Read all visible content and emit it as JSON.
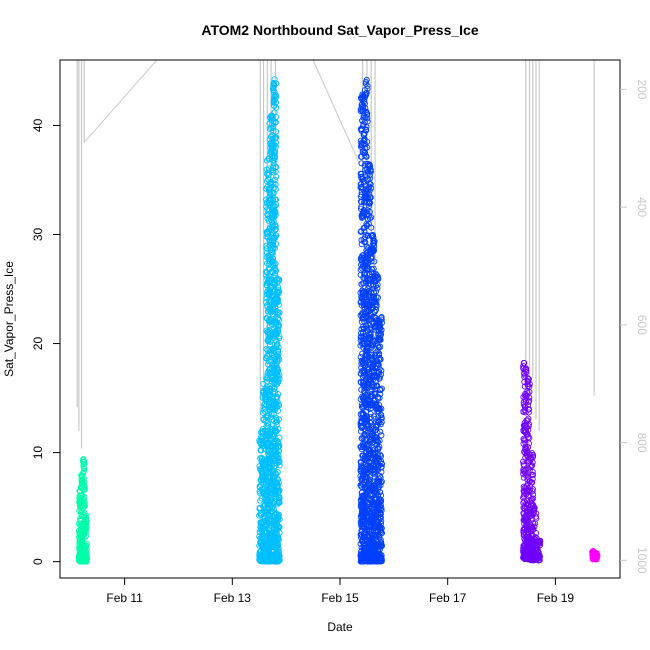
{
  "chart_data": {
    "type": "scatter",
    "title": "ATOM2 Northbound Sat_Vapor_Press_Ice",
    "xlabel": "Date",
    "ylabel": "Sat_Vapor_Press_Ice",
    "x_ticks": [
      "Feb 11",
      "Feb 13",
      "Feb 15",
      "Feb 17",
      "Feb 19"
    ],
    "x_tick_values": [
      11,
      13,
      15,
      17,
      19
    ],
    "xlim": [
      9.8,
      20.2
    ],
    "ylim": [
      -1.5,
      46
    ],
    "y_ticks": [
      0,
      10,
      20,
      30,
      40
    ],
    "right_axis": {
      "reversed": true,
      "ticks": [
        200,
        400,
        600,
        800,
        1000
      ],
      "ylim_top": 150,
      "ylim_bottom": 1030,
      "color": "#c8c8c8"
    },
    "series": [
      {
        "color": "#00ffaa",
        "x_start": 10.15,
        "x_end": 10.3,
        "segments": [
          [
            0.0,
            6.5
          ],
          [
            0.0,
            8.0
          ],
          [
            0.0,
            9.4
          ],
          [
            0.0,
            4.2
          ]
        ]
      },
      {
        "color": "#00bfff",
        "x_start": 13.5,
        "x_end": 13.88,
        "segments": [
          [
            0.0,
            12.0
          ],
          [
            0.0,
            16.3
          ],
          [
            0.0,
            37.0
          ],
          [
            0.0,
            41.0
          ],
          [
            0.0,
            44.5
          ],
          [
            0.0,
            26.0
          ]
        ]
      },
      {
        "color": "#0040ff",
        "x_start": 15.38,
        "x_end": 15.78,
        "segments": [
          [
            0.0,
            43.0
          ],
          [
            0.0,
            44.2
          ],
          [
            0.0,
            36.5
          ],
          [
            0.0,
            30.0
          ],
          [
            0.0,
            26.5
          ],
          [
            0.0,
            22.5
          ]
        ]
      },
      {
        "color": "#7000ff",
        "x_start": 18.4,
        "x_end": 18.72,
        "segments": [
          [
            0.2,
            18.5
          ],
          [
            0.2,
            17.0
          ],
          [
            0.1,
            10.0
          ],
          [
            0.1,
            5.0
          ],
          [
            0.1,
            2.0
          ]
        ]
      },
      {
        "color": "#ff00ff",
        "x_start": 19.68,
        "x_end": 19.78,
        "segments": [
          [
            0.2,
            1.0
          ],
          [
            0.2,
            0.8
          ]
        ]
      }
    ],
    "pressure_lines": [
      {
        "x": 10.12,
        "top": 150,
        "bottom": 740
      },
      {
        "x": 10.15,
        "top": 150,
        "bottom": 780
      },
      {
        "x": 10.2,
        "top": 150,
        "bottom": 810
      },
      {
        "x": 10.25,
        "top": 150,
        "bottom": 290
      },
      {
        "x": 13.52,
        "top": 150,
        "bottom": 760
      },
      {
        "x": 13.58,
        "top": 150,
        "bottom": 700
      },
      {
        "x": 13.65,
        "top": 150,
        "bottom": 680
      },
      {
        "x": 13.72,
        "top": 150,
        "bottom": 420
      },
      {
        "x": 13.8,
        "top": 150,
        "bottom": 560
      },
      {
        "x": 15.42,
        "top": 150,
        "bottom": 340
      },
      {
        "x": 15.5,
        "top": 150,
        "bottom": 600
      },
      {
        "x": 15.58,
        "top": 150,
        "bottom": 480
      },
      {
        "x": 15.65,
        "top": 150,
        "bottom": 520
      },
      {
        "x": 18.45,
        "top": 150,
        "bottom": 750
      },
      {
        "x": 18.52,
        "top": 150,
        "bottom": 710
      },
      {
        "x": 18.58,
        "top": 150,
        "bottom": 690
      },
      {
        "x": 18.64,
        "top": 150,
        "bottom": 760
      },
      {
        "x": 18.7,
        "top": 150,
        "bottom": 780
      },
      {
        "x": 19.72,
        "top": 150,
        "bottom": 720
      }
    ],
    "connector_lines": [
      {
        "x1": 10.25,
        "p1": 290,
        "x2": 11.6,
        "p2": 150
      },
      {
        "x1": 14.5,
        "p1": 150,
        "x2": 15.38,
        "p2": 330
      }
    ]
  }
}
